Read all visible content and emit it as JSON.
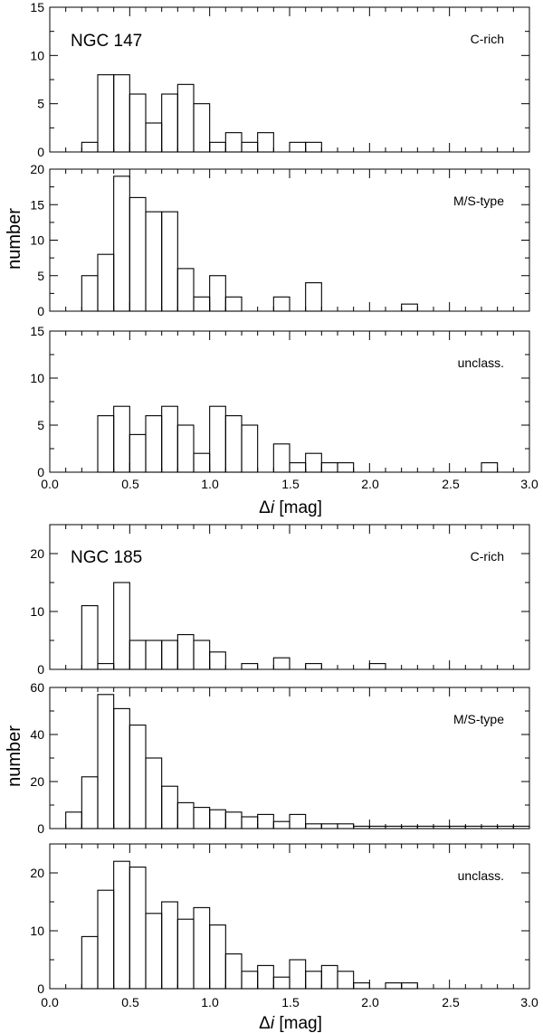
{
  "figure": {
    "groups": [
      {
        "galaxy": "NGC 147",
        "ylabel": "number",
        "xlabel_symbol": "Δ",
        "xlabel_var": "i",
        "xlabel_unit": " [mag]",
        "xticklabels": [
          "0.0",
          "0.5",
          "1.0",
          "1.5",
          "2.0",
          "2.5",
          "3.0"
        ]
      },
      {
        "galaxy": "NGC 185",
        "ylabel": "number",
        "xlabel_symbol": "Δ",
        "xlabel_var": "i",
        "xlabel_unit": " [mag]",
        "xticklabels": [
          "0.0",
          "0.5",
          "1.0",
          "1.5",
          "2.0",
          "2.5",
          "3.0"
        ]
      }
    ]
  },
  "chart_data": [
    {
      "type": "bar",
      "galaxy": "NGC 147",
      "label": "C-rich",
      "bin_width": 0.1,
      "bin_starts": [
        0.2,
        0.3,
        0.4,
        0.5,
        0.6,
        0.7,
        0.8,
        0.9,
        1.0,
        1.1,
        1.2,
        1.3,
        1.4,
        1.5,
        1.6
      ],
      "values": [
        1,
        8,
        8,
        6,
        3,
        6,
        7,
        5,
        1,
        2,
        1,
        2,
        0,
        1,
        1
      ],
      "xlim": [
        0,
        3
      ],
      "ylim": [
        0,
        15
      ],
      "yticks": [
        "0",
        "5",
        "10",
        "15"
      ]
    },
    {
      "type": "bar",
      "galaxy": "NGC 147",
      "label": "M/S-type",
      "bin_width": 0.1,
      "bin_starts": [
        0.2,
        0.3,
        0.4,
        0.5,
        0.6,
        0.7,
        0.8,
        0.9,
        1.0,
        1.1,
        1.2,
        1.3,
        1.4,
        1.5,
        1.6,
        1.7,
        1.8,
        1.9,
        2.0,
        2.1,
        2.2
      ],
      "values": [
        5,
        8,
        19,
        16,
        14,
        14,
        6,
        2,
        5,
        2,
        0,
        0,
        2,
        0,
        4,
        0,
        0,
        0,
        0,
        0,
        1
      ],
      "xlim": [
        0,
        3
      ],
      "ylim": [
        0,
        20
      ],
      "yticks": [
        "0",
        "5",
        "10",
        "15",
        "20"
      ]
    },
    {
      "type": "bar",
      "galaxy": "NGC 147",
      "label": "unclass.",
      "bin_width": 0.1,
      "bin_starts": [
        0.3,
        0.4,
        0.5,
        0.6,
        0.7,
        0.8,
        0.9,
        1.0,
        1.1,
        1.2,
        1.3,
        1.4,
        1.5,
        1.6,
        1.7,
        1.8,
        1.9,
        2.0,
        2.1,
        2.2,
        2.3,
        2.4,
        2.5,
        2.6,
        2.7
      ],
      "values": [
        6,
        7,
        4,
        6,
        7,
        5,
        2,
        7,
        6,
        5,
        0,
        3,
        1,
        2,
        1,
        1,
        0,
        0,
        0,
        0,
        0,
        0,
        0,
        0,
        1
      ],
      "xlim": [
        0,
        3
      ],
      "ylim": [
        0,
        15
      ],
      "yticks": [
        "0",
        "5",
        "10",
        "15"
      ]
    },
    {
      "type": "bar",
      "galaxy": "NGC 185",
      "label": "C-rich",
      "bin_width": 0.1,
      "bin_starts": [
        0.2,
        0.3,
        0.4,
        0.5,
        0.6,
        0.7,
        0.8,
        0.9,
        1.0,
        1.1,
        1.2,
        1.3,
        1.4,
        1.5,
        1.6,
        1.7,
        1.8,
        1.9,
        2.0
      ],
      "values": [
        11,
        1,
        15,
        5,
        5,
        5,
        6,
        5,
        3,
        0,
        1,
        0,
        2,
        0,
        1,
        0,
        0,
        0,
        1
      ],
      "xlim": [
        0,
        3
      ],
      "ylim": [
        0,
        25
      ],
      "yticks": [
        "0",
        "10",
        "20"
      ]
    },
    {
      "type": "bar",
      "galaxy": "NGC 185",
      "label": "M/S-type",
      "bin_width": 0.1,
      "bin_starts": [
        0.1,
        0.2,
        0.3,
        0.4,
        0.5,
        0.6,
        0.7,
        0.8,
        0.9,
        1.0,
        1.1,
        1.2,
        1.3,
        1.4,
        1.5,
        1.6,
        1.7,
        1.8,
        1.9,
        2.0,
        2.1,
        2.2,
        2.3,
        2.4,
        2.5,
        2.6,
        2.7,
        2.8,
        2.9
      ],
      "values": [
        7,
        22,
        57,
        51,
        44,
        30,
        18,
        11,
        9,
        8,
        7,
        5,
        6,
        3,
        6,
        2,
        2,
        2,
        1,
        1,
        1,
        1,
        1,
        1,
        1,
        1,
        1,
        1,
        1
      ],
      "xlim": [
        0,
        3
      ],
      "ylim": [
        0,
        60
      ],
      "yticks": [
        "0",
        "20",
        "40",
        "60"
      ]
    },
    {
      "type": "bar",
      "galaxy": "NGC 185",
      "label": "unclass.",
      "bin_width": 0.1,
      "bin_starts": [
        0.2,
        0.3,
        0.4,
        0.5,
        0.6,
        0.7,
        0.8,
        0.9,
        1.0,
        1.1,
        1.2,
        1.3,
        1.4,
        1.5,
        1.6,
        1.7,
        1.8,
        1.9,
        2.0,
        2.1,
        2.2
      ],
      "values": [
        9,
        17,
        22,
        21,
        13,
        15,
        12,
        14,
        11,
        6,
        3,
        4,
        2,
        5,
        3,
        4,
        3,
        1,
        0,
        1,
        1
      ],
      "xlim": [
        0,
        3
      ],
      "ylim": [
        0,
        25
      ],
      "yticks": [
        "0",
        "10",
        "20"
      ]
    }
  ]
}
